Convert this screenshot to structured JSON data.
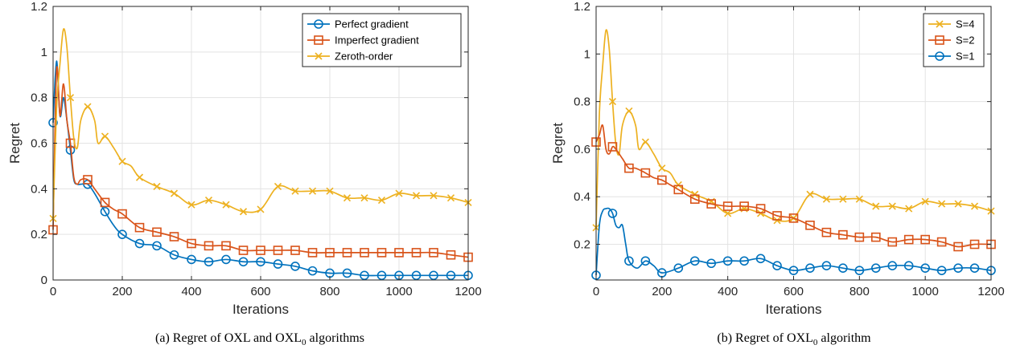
{
  "chart_data": [
    {
      "type": "line",
      "caption": {
        "prefix": "(a)  Regret of OXL and OXL",
        "sub": "0",
        "suffix": " algorithms"
      },
      "xlabel": "Iterations",
      "ylabel": "Regret",
      "xlim": [
        0,
        1200
      ],
      "ylim": [
        0,
        1.2
      ],
      "xticks": [
        0,
        200,
        400,
        600,
        800,
        1000,
        1200
      ],
      "yticks": [
        0,
        0.2,
        0.4,
        0.6,
        0.8,
        1,
        1.2
      ],
      "ytick_labels": [
        "0",
        "0.2",
        "0.4",
        "0.6",
        "0.8",
        "1",
        "1.2"
      ],
      "grid": true,
      "legend_position": "top-right",
      "legend_order": [
        0,
        1,
        2
      ],
      "series": [
        {
          "name": "Perfect gradient",
          "color": "#0072BD",
          "marker": "circle",
          "x": [
            0,
            10,
            20,
            30,
            40,
            50,
            60,
            70,
            80,
            100,
            120,
            150,
            175,
            200,
            250,
            300,
            350,
            400,
            450,
            500,
            550,
            600,
            650,
            700,
            750,
            800,
            850,
            900,
            950,
            1000,
            1050,
            1100,
            1150,
            1200
          ],
          "y": [
            0.69,
            0.96,
            0.72,
            0.8,
            0.7,
            0.57,
            0.44,
            0.42,
            0.42,
            0.42,
            0.38,
            0.3,
            0.24,
            0.2,
            0.16,
            0.15,
            0.11,
            0.09,
            0.08,
            0.09,
            0.08,
            0.08,
            0.07,
            0.06,
            0.04,
            0.03,
            0.03,
            0.02,
            0.02,
            0.02,
            0.02,
            0.02,
            0.02,
            0.02
          ]
        },
        {
          "name": "Imperfect gradient",
          "color": "#D95319",
          "marker": "square",
          "x": [
            0,
            10,
            20,
            30,
            40,
            50,
            60,
            70,
            80,
            100,
            120,
            150,
            175,
            200,
            250,
            300,
            350,
            400,
            450,
            500,
            550,
            600,
            650,
            700,
            750,
            800,
            850,
            900,
            950,
            1000,
            1050,
            1100,
            1150,
            1200
          ],
          "y": [
            0.22,
            0.92,
            0.72,
            0.86,
            0.7,
            0.6,
            0.45,
            0.42,
            0.44,
            0.44,
            0.4,
            0.34,
            0.31,
            0.29,
            0.23,
            0.21,
            0.19,
            0.16,
            0.15,
            0.15,
            0.13,
            0.13,
            0.13,
            0.13,
            0.12,
            0.12,
            0.12,
            0.12,
            0.12,
            0.12,
            0.12,
            0.12,
            0.11,
            0.1
          ]
        },
        {
          "name": "Zeroth-order",
          "color": "#EDB120",
          "marker": "x",
          "x": [
            0,
            10,
            20,
            30,
            40,
            50,
            60,
            70,
            80,
            100,
            120,
            130,
            150,
            175,
            200,
            225,
            250,
            300,
            350,
            400,
            450,
            500,
            550,
            600,
            650,
            700,
            750,
            800,
            850,
            900,
            950,
            1000,
            1050,
            1100,
            1150,
            1200
          ],
          "y": [
            0.27,
            0.75,
            0.95,
            1.1,
            1.02,
            0.8,
            0.62,
            0.58,
            0.7,
            0.76,
            0.7,
            0.6,
            0.63,
            0.58,
            0.52,
            0.5,
            0.45,
            0.41,
            0.38,
            0.33,
            0.35,
            0.33,
            0.3,
            0.31,
            0.41,
            0.39,
            0.39,
            0.39,
            0.36,
            0.36,
            0.35,
            0.38,
            0.37,
            0.37,
            0.36,
            0.34
          ]
        }
      ]
    },
    {
      "type": "line",
      "caption": {
        "prefix": "(b)  Regret of OXL",
        "sub": "0",
        "suffix": " algorithm"
      },
      "xlabel": "Iterations",
      "ylabel": "Regret",
      "xlim": [
        0,
        1200
      ],
      "ylim": [
        0.05,
        1.2
      ],
      "xticks": [
        0,
        200,
        400,
        600,
        800,
        1000,
        1200
      ],
      "yticks": [
        0.2,
        0.4,
        0.6,
        0.8,
        1,
        1.2
      ],
      "ytick_labels": [
        "0.2",
        "0.4",
        "0.6",
        "0.8",
        "1",
        "1.2"
      ],
      "grid": true,
      "legend_position": "top-right",
      "legend_order": [
        0,
        1,
        2
      ],
      "series": [
        {
          "name": "S=4",
          "color": "#EDB120",
          "marker": "x",
          "x": [
            0,
            10,
            20,
            30,
            40,
            50,
            60,
            70,
            80,
            100,
            120,
            130,
            150,
            175,
            200,
            225,
            250,
            300,
            350,
            400,
            450,
            500,
            550,
            600,
            650,
            700,
            750,
            800,
            850,
            900,
            950,
            1000,
            1050,
            1100,
            1150,
            1200
          ],
          "y": [
            0.27,
            0.75,
            0.95,
            1.1,
            1.02,
            0.8,
            0.62,
            0.58,
            0.7,
            0.76,
            0.7,
            0.6,
            0.63,
            0.58,
            0.52,
            0.5,
            0.45,
            0.41,
            0.38,
            0.33,
            0.35,
            0.33,
            0.3,
            0.31,
            0.41,
            0.39,
            0.39,
            0.39,
            0.36,
            0.36,
            0.35,
            0.38,
            0.37,
            0.37,
            0.36,
            0.34
          ]
        },
        {
          "name": "S=2",
          "color": "#D95319",
          "marker": "square",
          "x": [
            0,
            10,
            20,
            30,
            40,
            50,
            60,
            80,
            100,
            120,
            150,
            175,
            200,
            225,
            250,
            300,
            350,
            400,
            450,
            500,
            550,
            600,
            650,
            700,
            750,
            800,
            850,
            900,
            950,
            1000,
            1050,
            1100,
            1150,
            1200
          ],
          "y": [
            0.63,
            0.66,
            0.7,
            0.6,
            0.58,
            0.61,
            0.6,
            0.56,
            0.52,
            0.52,
            0.5,
            0.48,
            0.47,
            0.45,
            0.43,
            0.39,
            0.37,
            0.36,
            0.36,
            0.35,
            0.32,
            0.31,
            0.28,
            0.25,
            0.24,
            0.23,
            0.23,
            0.21,
            0.22,
            0.22,
            0.21,
            0.19,
            0.2,
            0.2
          ]
        },
        {
          "name": "S=1",
          "color": "#0072BD",
          "marker": "circle",
          "x": [
            0,
            10,
            20,
            30,
            40,
            50,
            60,
            70,
            80,
            90,
            100,
            125,
            150,
            175,
            200,
            250,
            300,
            350,
            400,
            450,
            500,
            550,
            600,
            650,
            700,
            750,
            800,
            850,
            900,
            950,
            1000,
            1050,
            1100,
            1150,
            1200
          ],
          "y": [
            0.07,
            0.28,
            0.34,
            0.35,
            0.35,
            0.33,
            0.28,
            0.27,
            0.28,
            0.2,
            0.13,
            0.1,
            0.13,
            0.11,
            0.08,
            0.1,
            0.13,
            0.12,
            0.13,
            0.13,
            0.14,
            0.11,
            0.09,
            0.1,
            0.11,
            0.1,
            0.09,
            0.1,
            0.11,
            0.11,
            0.1,
            0.09,
            0.1,
            0.1,
            0.09
          ]
        }
      ]
    }
  ]
}
